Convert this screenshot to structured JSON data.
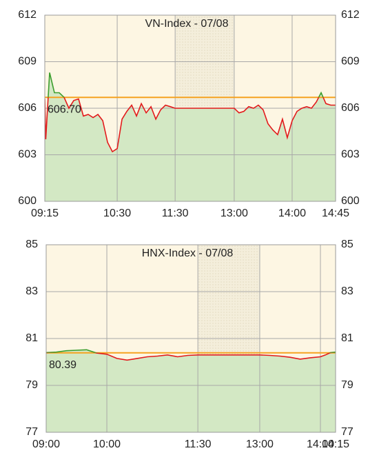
{
  "chart_data": [
    {
      "type": "line",
      "title": "VN-Index - 07/08",
      "x": [
        "09:15",
        "09:16",
        "09:20",
        "09:25",
        "09:30",
        "09:35",
        "09:40",
        "09:45",
        "09:50",
        "09:55",
        "10:00",
        "10:05",
        "10:10",
        "10:15",
        "10:20",
        "10:25",
        "10:30",
        "10:35",
        "10:40",
        "10:45",
        "10:50",
        "10:55",
        "11:00",
        "11:05",
        "11:10",
        "11:15",
        "11:20",
        "11:25",
        "11:30",
        "13:00",
        "13:05",
        "13:10",
        "13:15",
        "13:20",
        "13:25",
        "13:30",
        "13:35",
        "13:40",
        "13:45",
        "13:50",
        "13:55",
        "14:00",
        "14:05",
        "14:10",
        "14:15",
        "14:20",
        "14:25",
        "14:30",
        "14:35",
        "14:40",
        "14:45"
      ],
      "values": [
        606.6,
        604.0,
        608.3,
        607.0,
        607.0,
        606.7,
        606.0,
        606.5,
        606.6,
        605.5,
        605.6,
        605.4,
        605.6,
        605.2,
        603.8,
        603.2,
        603.4,
        605.3,
        605.8,
        606.2,
        605.5,
        606.3,
        605.7,
        606.1,
        605.3,
        605.9,
        606.2,
        606.1,
        606.0,
        606.0,
        605.7,
        605.8,
        606.1,
        606.0,
        606.2,
        605.9,
        605.0,
        604.6,
        604.3,
        605.3,
        604.1,
        605.2,
        605.8,
        606.0,
        606.1,
        606.0,
        606.4,
        607.0,
        606.3,
        606.2,
        606.2
      ],
      "xlim": [
        "09:15",
        "14:45"
      ],
      "xticks": [
        "09:15",
        "10:30",
        "11:30",
        "13:00",
        "14:00",
        "14:45"
      ],
      "ylim": [
        600,
        612
      ],
      "yticks": [
        600,
        603,
        606,
        609,
        612
      ],
      "reference": 606.7,
      "reference_label": "606.70",
      "line_colors": {
        "above": "#3a9d2c",
        "below": "#e3191b"
      },
      "fill_color": "#d3e8c4",
      "reference_color": "#f5a21f",
      "grid": true
    },
    {
      "type": "line",
      "title": "HNX-Index - 07/08",
      "x": [
        "09:00",
        "09:10",
        "09:20",
        "09:30",
        "09:40",
        "09:50",
        "10:00",
        "10:10",
        "10:20",
        "10:30",
        "10:40",
        "10:50",
        "11:00",
        "11:10",
        "11:20",
        "11:30",
        "13:00",
        "13:10",
        "13:20",
        "13:30",
        "13:40",
        "13:50",
        "14:00",
        "14:05",
        "14:10",
        "14:15"
      ],
      "values": [
        80.4,
        80.42,
        80.48,
        80.5,
        80.52,
        80.38,
        80.33,
        80.15,
        80.08,
        80.15,
        80.22,
        80.25,
        80.3,
        80.22,
        80.28,
        80.3,
        80.3,
        80.28,
        80.25,
        80.2,
        80.12,
        80.18,
        80.22,
        80.3,
        80.4,
        80.42
      ],
      "xlim": [
        "09:00",
        "14:15"
      ],
      "xticks": [
        "09:00",
        "10:00",
        "11:30",
        "13:00",
        "14:00",
        "14:15"
      ],
      "ylim": [
        77,
        85
      ],
      "yticks": [
        77,
        79,
        81,
        83,
        85
      ],
      "reference": 80.39,
      "reference_label": "80.39",
      "line_colors": {
        "above": "#3a9d2c",
        "below": "#e3191b"
      },
      "fill_color": "#d3e8c4",
      "reference_color": "#f5a21f",
      "grid": true
    }
  ]
}
